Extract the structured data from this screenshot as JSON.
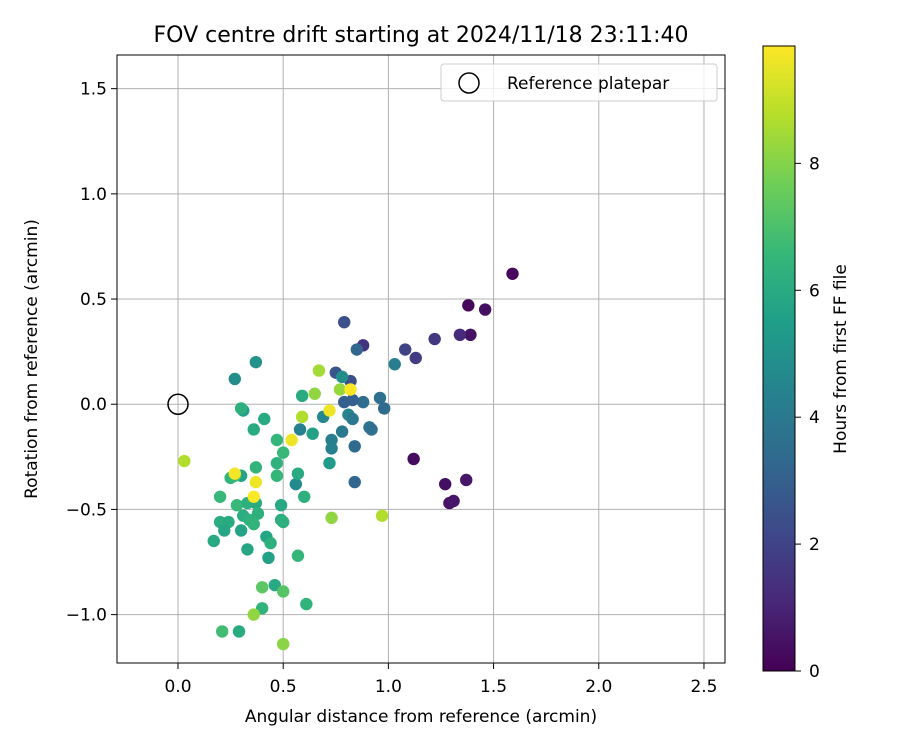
{
  "chart_data": {
    "type": "scatter",
    "title": "FOV centre drift starting at 2024/11/18 23:11:40",
    "xlabel": "Angular distance from reference (arcmin)",
    "ylabel": "Rotation from reference (arcmin)",
    "xlim": [
      -0.29,
      2.6
    ],
    "ylim": [
      -1.23,
      1.66
    ],
    "xticks": [
      "0.0",
      "0.5",
      "1.0",
      "1.5",
      "2.0",
      "2.5"
    ],
    "xtick_values": [
      0,
      0.5,
      1,
      1.5,
      2,
      2.5
    ],
    "yticks": [
      "−1.0",
      "−0.5",
      "0.0",
      "0.5",
      "1.0",
      "1.5"
    ],
    "ytick_values": [
      -1,
      -0.5,
      0,
      0.5,
      1,
      1.5
    ],
    "grid": true,
    "legend": {
      "placement": "top-right",
      "label": "Reference platepar"
    },
    "reference_point": {
      "x": 0,
      "y": 0
    },
    "colorbar": {
      "label": "Hours from first FF file",
      "colormap": "viridis",
      "range": [
        0,
        9.85
      ],
      "ticks": [
        "0",
        "2",
        "4",
        "6",
        "8"
      ],
      "tick_values": [
        0,
        2,
        4,
        6,
        8
      ]
    },
    "colormap_stops": [
      "#440154",
      "#482878",
      "#3e4989",
      "#31688e",
      "#26828e",
      "#1f9e89",
      "#35b779",
      "#6ece58",
      "#b5de2b",
      "#fde725"
    ],
    "points": [
      {
        "x": 1.59,
        "y": 0.62,
        "h": 0.2
      },
      {
        "x": 1.38,
        "y": 0.47,
        "h": 0.2
      },
      {
        "x": 1.46,
        "y": 0.45,
        "h": 0.4
      },
      {
        "x": 1.39,
        "y": 0.33,
        "h": 0.5
      },
      {
        "x": 1.34,
        "y": 0.33,
        "h": 1.2
      },
      {
        "x": 1.22,
        "y": 0.31,
        "h": 1.6
      },
      {
        "x": 1.13,
        "y": 0.22,
        "h": 1.8
      },
      {
        "x": 1.08,
        "y": 0.26,
        "h": 2.0
      },
      {
        "x": 0.88,
        "y": 0.28,
        "h": 1.4
      },
      {
        "x": 0.79,
        "y": 0.39,
        "h": 2.4
      },
      {
        "x": 0.85,
        "y": 0.26,
        "h": 3.2
      },
      {
        "x": 0.82,
        "y": 0.11,
        "h": 2.4
      },
      {
        "x": 0.75,
        "y": 0.15,
        "h": 2.6
      },
      {
        "x": 1.03,
        "y": 0.19,
        "h": 4.2
      },
      {
        "x": 0.96,
        "y": 0.03,
        "h": 3.6
      },
      {
        "x": 0.98,
        "y": -0.02,
        "h": 3.4
      },
      {
        "x": 0.88,
        "y": 0.01,
        "h": 3.5
      },
      {
        "x": 0.83,
        "y": 0.02,
        "h": 3.0
      },
      {
        "x": 0.79,
        "y": 0.01,
        "h": 3.0
      },
      {
        "x": 0.78,
        "y": 0.13,
        "h": 4.8
      },
      {
        "x": 0.81,
        "y": -0.05,
        "h": 4.5
      },
      {
        "x": 0.83,
        "y": -0.07,
        "h": 4.0
      },
      {
        "x": 0.91,
        "y": -0.11,
        "h": 3.8
      },
      {
        "x": 0.92,
        "y": -0.12,
        "h": 3.6
      },
      {
        "x": 0.69,
        "y": -0.06,
        "h": 4.6
      },
      {
        "x": 0.73,
        "y": -0.17,
        "h": 4.2
      },
      {
        "x": 0.73,
        "y": -0.21,
        "h": 4.3
      },
      {
        "x": 0.78,
        "y": -0.13,
        "h": 4.0
      },
      {
        "x": 0.84,
        "y": -0.2,
        "h": 3.4
      },
      {
        "x": 0.84,
        "y": -0.37,
        "h": 3.2
      },
      {
        "x": 0.72,
        "y": -0.28,
        "h": 5.3
      },
      {
        "x": 0.58,
        "y": -0.12,
        "h": 4.3
      },
      {
        "x": 0.56,
        "y": -0.38,
        "h": 4.7
      },
      {
        "x": 0.64,
        "y": -0.14,
        "h": 5.6
      },
      {
        "x": 0.59,
        "y": 0.04,
        "h": 6.0
      },
      {
        "x": 0.57,
        "y": -0.33,
        "h": 6.0
      },
      {
        "x": 0.6,
        "y": -0.44,
        "h": 6.2
      },
      {
        "x": 0.65,
        "y": 0.05,
        "h": 8.2
      },
      {
        "x": 0.67,
        "y": 0.16,
        "h": 8.5
      },
      {
        "x": 0.59,
        "y": -0.06,
        "h": 8.7
      },
      {
        "x": 0.72,
        "y": -0.03,
        "h": 9.6
      },
      {
        "x": 0.77,
        "y": 0.07,
        "h": 8.3
      },
      {
        "x": 0.82,
        "y": 0.07,
        "h": 9.9
      },
      {
        "x": 0.54,
        "y": -0.17,
        "h": 9.6
      },
      {
        "x": 1.12,
        "y": -0.26,
        "h": 0.3
      },
      {
        "x": 1.27,
        "y": -0.38,
        "h": 0.4
      },
      {
        "x": 1.29,
        "y": -0.47,
        "h": 0.5
      },
      {
        "x": 1.31,
        "y": -0.46,
        "h": 0.6
      },
      {
        "x": 1.37,
        "y": -0.36,
        "h": 0.6
      },
      {
        "x": 0.97,
        "y": -0.53,
        "h": 8.7
      },
      {
        "x": 0.73,
        "y": -0.54,
        "h": 8.2
      },
      {
        "x": 0.27,
        "y": 0.12,
        "h": 4.8
      },
      {
        "x": 0.37,
        "y": 0.2,
        "h": 5.0
      },
      {
        "x": 0.31,
        "y": -0.03,
        "h": 5.5
      },
      {
        "x": 0.3,
        "y": -0.02,
        "h": 6.2
      },
      {
        "x": 0.41,
        "y": -0.07,
        "h": 6.0
      },
      {
        "x": 0.36,
        "y": -0.12,
        "h": 6.0
      },
      {
        "x": 0.47,
        "y": -0.17,
        "h": 6.5
      },
      {
        "x": 0.5,
        "y": -0.23,
        "h": 6.6
      },
      {
        "x": 0.47,
        "y": -0.28,
        "h": 6.3
      },
      {
        "x": 0.37,
        "y": -0.3,
        "h": 6.4
      },
      {
        "x": 0.3,
        "y": -0.34,
        "h": 5.7
      },
      {
        "x": 0.27,
        "y": -0.34,
        "h": 6.9
      },
      {
        "x": 0.25,
        "y": -0.35,
        "h": 6.5
      },
      {
        "x": 0.47,
        "y": -0.34,
        "h": 6.5
      },
      {
        "x": 0.2,
        "y": -0.44,
        "h": 6.6
      },
      {
        "x": 0.28,
        "y": -0.48,
        "h": 6.6
      },
      {
        "x": 0.33,
        "y": -0.47,
        "h": 6.2
      },
      {
        "x": 0.37,
        "y": -0.47,
        "h": 6.0
      },
      {
        "x": 0.38,
        "y": -0.52,
        "h": 6.2
      },
      {
        "x": 0.31,
        "y": -0.53,
        "h": 6.1
      },
      {
        "x": 0.34,
        "y": -0.55,
        "h": 6.3
      },
      {
        "x": 0.36,
        "y": -0.57,
        "h": 6.4
      },
      {
        "x": 0.49,
        "y": -0.48,
        "h": 5.9
      },
      {
        "x": 0.49,
        "y": -0.55,
        "h": 6.1
      },
      {
        "x": 0.5,
        "y": -0.56,
        "h": 6.2
      },
      {
        "x": 0.36,
        "y": -0.44,
        "h": 9.8
      },
      {
        "x": 0.37,
        "y": -0.37,
        "h": 9.6
      },
      {
        "x": 0.27,
        "y": -0.33,
        "h": 9.7
      },
      {
        "x": 0.2,
        "y": -0.56,
        "h": 6.1
      },
      {
        "x": 0.24,
        "y": -0.56,
        "h": 6.0
      },
      {
        "x": 0.22,
        "y": -0.6,
        "h": 5.8
      },
      {
        "x": 0.3,
        "y": -0.6,
        "h": 5.7
      },
      {
        "x": 0.17,
        "y": -0.65,
        "h": 5.9
      },
      {
        "x": 0.42,
        "y": -0.63,
        "h": 5.8
      },
      {
        "x": 0.44,
        "y": -0.66,
        "h": 6.2
      },
      {
        "x": 0.33,
        "y": -0.69,
        "h": 5.8
      },
      {
        "x": 0.43,
        "y": -0.73,
        "h": 5.6
      },
      {
        "x": 0.57,
        "y": -0.72,
        "h": 6.5
      },
      {
        "x": 0.4,
        "y": -0.87,
        "h": 7.3
      },
      {
        "x": 0.46,
        "y": -0.86,
        "h": 5.9
      },
      {
        "x": 0.5,
        "y": -0.89,
        "h": 7.2
      },
      {
        "x": 0.4,
        "y": -0.97,
        "h": 6.4
      },
      {
        "x": 0.36,
        "y": -1.0,
        "h": 8.2
      },
      {
        "x": 0.61,
        "y": -0.95,
        "h": 6.4
      },
      {
        "x": 0.21,
        "y": -1.08,
        "h": 6.8
      },
      {
        "x": 0.29,
        "y": -1.08,
        "h": 6.0
      },
      {
        "x": 0.5,
        "y": -1.14,
        "h": 8.1
      },
      {
        "x": 0.03,
        "y": -0.27,
        "h": 8.7
      }
    ]
  }
}
